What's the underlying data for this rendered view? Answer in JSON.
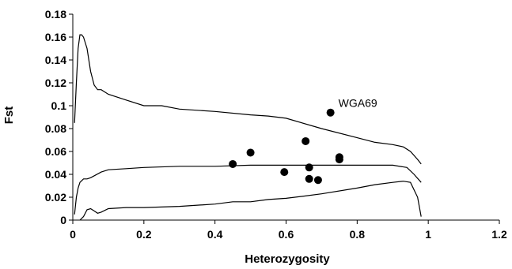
{
  "chart_data": {
    "type": "scatter",
    "title": "",
    "xlabel": "Heterozygosity",
    "ylabel": "Fst",
    "xlim": [
      0,
      1.2
    ],
    "ylim": [
      0,
      0.18
    ],
    "xticks": [
      "0",
      "0.2",
      "0.4",
      "0.6",
      "0.8",
      "1",
      "1.2"
    ],
    "yticks": [
      "0",
      "0.02",
      "0.04",
      "0.06",
      "0.08",
      "0.1",
      "0.12",
      "0.14",
      "0.16",
      "0.18"
    ],
    "grid": false,
    "legend": "none",
    "points": [
      {
        "x": 0.45,
        "y": 0.049
      },
      {
        "x": 0.5,
        "y": 0.059
      },
      {
        "x": 0.595,
        "y": 0.042
      },
      {
        "x": 0.655,
        "y": 0.069
      },
      {
        "x": 0.665,
        "y": 0.046
      },
      {
        "x": 0.665,
        "y": 0.036
      },
      {
        "x": 0.69,
        "y": 0.035
      },
      {
        "x": 0.725,
        "y": 0.094,
        "label": "WGA69"
      },
      {
        "x": 0.75,
        "y": 0.055
      },
      {
        "x": 0.75,
        "y": 0.053
      }
    ],
    "lines": [
      {
        "role": "upper",
        "x": [
          0.005,
          0.01,
          0.015,
          0.02,
          0.025,
          0.03,
          0.04,
          0.05,
          0.06,
          0.07,
          0.08,
          0.1,
          0.15,
          0.2,
          0.25,
          0.3,
          0.4,
          0.5,
          0.55,
          0.6,
          0.7,
          0.8,
          0.85,
          0.9,
          0.93,
          0.95,
          0.97,
          0.98
        ],
        "y": [
          0.085,
          0.12,
          0.15,
          0.162,
          0.162,
          0.16,
          0.15,
          0.13,
          0.118,
          0.114,
          0.114,
          0.11,
          0.105,
          0.1,
          0.1,
          0.097,
          0.095,
          0.092,
          0.091,
          0.089,
          0.08,
          0.072,
          0.068,
          0.066,
          0.064,
          0.06,
          0.053,
          0.049
        ]
      },
      {
        "role": "middle",
        "x": [
          0.005,
          0.01,
          0.015,
          0.02,
          0.03,
          0.04,
          0.05,
          0.08,
          0.1,
          0.15,
          0.2,
          0.3,
          0.4,
          0.5,
          0.6,
          0.7,
          0.8,
          0.9,
          0.94,
          0.96,
          0.98
        ],
        "y": [
          0.005,
          0.02,
          0.028,
          0.033,
          0.036,
          0.036,
          0.037,
          0.042,
          0.044,
          0.045,
          0.046,
          0.047,
          0.047,
          0.048,
          0.048,
          0.048,
          0.048,
          0.048,
          0.046,
          0.04,
          0.033
        ]
      },
      {
        "role": "lower",
        "x": [
          0.02,
          0.03,
          0.04,
          0.05,
          0.06,
          0.07,
          0.08,
          0.1,
          0.15,
          0.2,
          0.3,
          0.4,
          0.45,
          0.5,
          0.55,
          0.6,
          0.65,
          0.7,
          0.8,
          0.85,
          0.9,
          0.93,
          0.95,
          0.97,
          0.98
        ],
        "y": [
          0.0,
          0.003,
          0.009,
          0.01,
          0.008,
          0.006,
          0.007,
          0.01,
          0.011,
          0.011,
          0.012,
          0.014,
          0.016,
          0.016,
          0.018,
          0.019,
          0.021,
          0.023,
          0.028,
          0.031,
          0.033,
          0.034,
          0.033,
          0.02,
          0.003
        ]
      }
    ]
  }
}
